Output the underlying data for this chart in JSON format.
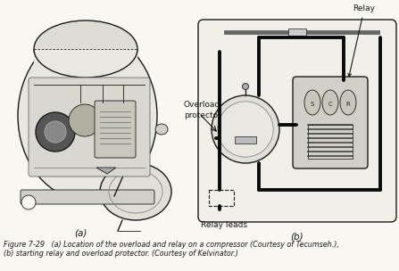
{
  "bg": "#f8f7f2",
  "lc": "#1a1a1a",
  "figure_width": 4.47,
  "figure_height": 3.04,
  "dpi": 100,
  "caption1": "Figure 7-29   (a) Location of the overload and relay on a compressor (Courtesy of Tecumseh.),",
  "caption2": "(b) starting relay and overload protector. (Courtesy of Kelvinator.)",
  "label_a": "(a)",
  "label_b": "(b)",
  "label_relay": "Relay",
  "label_overload_1": "Overload",
  "label_overload_2": "protector",
  "label_relay_leads": "Relay leads",
  "label_s": "S",
  "label_c": "C",
  "label_r": "R",
  "cap_fs": 5.8,
  "lbl_fs": 7.5,
  "ann_fs": 6.5
}
